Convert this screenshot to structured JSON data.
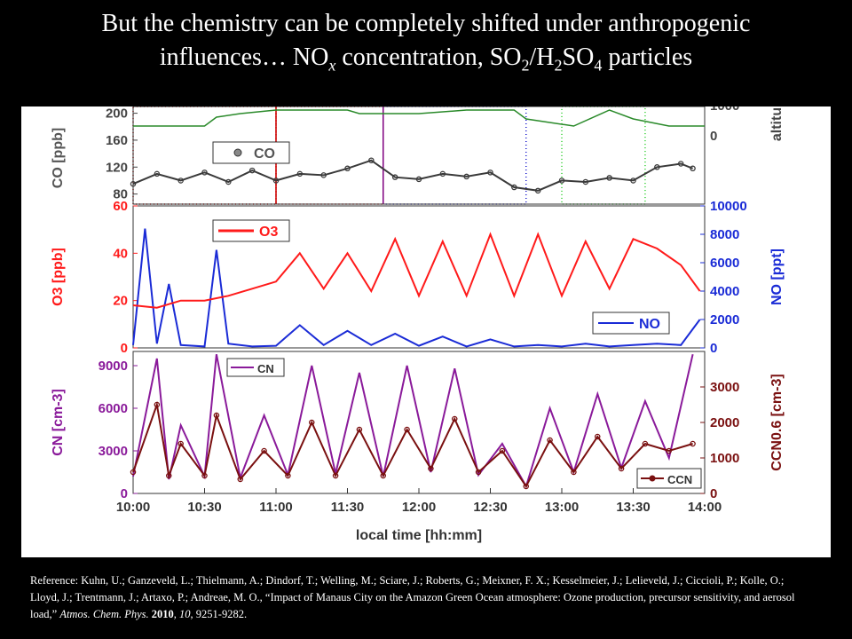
{
  "title": {
    "line1": "But the chemistry can be completely shifted under anthropogenic",
    "line2_a": "influences… NO",
    "line2_x": "x",
    "line2_b": " concentration, SO",
    "line2_2a": "2",
    "line2_c": "/H",
    "line2_2b": "2",
    "line2_d": "SO",
    "line2_4": "4",
    "line2_e": " particles"
  },
  "reference": {
    "text": "Reference: Kuhn, U.; Ganzeveld, L.; Thielmann, A.; Dindorf, T.; Welling, M.; Sciare, J.; Roberts, G.; Meixner, F. X.; Kesselmeier, J.; Lelieveld, J.; Ciccioli, P.; Kolle, O.; Lloyd, J.; Trentmann, J.; Artaxo, P.; Andreae, M. O., “Impact of Manaus City on the Amazon Green Ocean atmosphere: Ozone production, precursor sensitivity, and aerosol load,” ",
    "journal": "Atmos. Chem. Phys.",
    "year": "2010",
    "volume": "10",
    "pages": ", 9251-9282."
  },
  "colors": {
    "co": "#3a3a3a",
    "o3": "#ff1a1a",
    "no": "#1a2bd6",
    "cn": "#8a1a9a",
    "ccn": "#7a1010",
    "altitude": "#2a8a2a",
    "box_red": "#cc0000",
    "box_purple": "#800080",
    "box_blue": "#1a1acc",
    "box_green": "#22cc22"
  },
  "chart_data": [
    {
      "type": "line",
      "panel": "CO / altitude",
      "ylabel": "CO [ppb]",
      "y2label": "altitu",
      "ylim": [
        65,
        210
      ],
      "yticks": [
        "80",
        "120",
        "160",
        "200"
      ],
      "y2ticks": [
        "0",
        "1000"
      ],
      "legend": "CO",
      "series": [
        {
          "name": "CO",
          "x": [
            "10:00",
            "10:10",
            "10:20",
            "10:30",
            "10:40",
            "10:50",
            "11:00",
            "11:10",
            "11:20",
            "11:30",
            "11:40",
            "11:50",
            "12:00",
            "12:10",
            "12:20",
            "12:30",
            "12:40",
            "12:50",
            "13:00",
            "13:10",
            "13:20",
            "13:30",
            "13:40",
            "13:50",
            "13:55"
          ],
          "values": [
            95,
            110,
            100,
            112,
            98,
            115,
            100,
            110,
            108,
            118,
            130,
            105,
            102,
            110,
            106,
            112,
            90,
            85,
            100,
            98,
            104,
            100,
            120,
            125,
            118
          ]
        }
      ]
    },
    {
      "type": "line",
      "panel": "O3 / NO",
      "ylabel": "O3 [ppb]",
      "y2label": "NO [ppt]",
      "ylim": [
        0,
        60
      ],
      "y2lim": [
        0,
        10000
      ],
      "yticks": [
        "0",
        "20",
        "40",
        "60"
      ],
      "y2ticks": [
        "0",
        "2000",
        "4000",
        "6000",
        "8000",
        "10000"
      ],
      "series": [
        {
          "name": "O3",
          "x": [
            "10:00",
            "10:10",
            "10:20",
            "10:30",
            "10:40",
            "10:50",
            "11:00",
            "11:10",
            "11:20",
            "11:30",
            "11:40",
            "11:50",
            "12:00",
            "12:10",
            "12:20",
            "12:30",
            "12:40",
            "12:50",
            "13:00",
            "13:10",
            "13:20",
            "13:30",
            "13:40",
            "13:50",
            "13:58"
          ],
          "values": [
            18,
            17,
            20,
            20,
            22,
            25,
            28,
            40,
            25,
            40,
            24,
            46,
            22,
            45,
            22,
            48,
            22,
            48,
            22,
            45,
            25,
            46,
            42,
            35,
            24
          ]
        },
        {
          "name": "NO",
          "x": [
            "10:00",
            "10:05",
            "10:10",
            "10:15",
            "10:20",
            "10:30",
            "10:35",
            "10:40",
            "10:50",
            "11:00",
            "11:10",
            "11:20",
            "11:30",
            "11:40",
            "11:50",
            "12:00",
            "12:10",
            "12:20",
            "12:30",
            "12:40",
            "12:50",
            "13:00",
            "13:10",
            "13:20",
            "13:30",
            "13:40",
            "13:50",
            "13:58"
          ],
          "values": [
            200,
            8400,
            300,
            4500,
            200,
            100,
            6900,
            300,
            100,
            150,
            1600,
            200,
            1200,
            200,
            1000,
            150,
            800,
            100,
            600,
            100,
            200,
            100,
            300,
            100,
            200,
            300,
            200,
            2000
          ]
        }
      ]
    },
    {
      "type": "line",
      "panel": "CN / CCN",
      "ylabel": "CN [cm-3]",
      "y2label": "CCN0.6 [cm-3]",
      "ylim": [
        0,
        10000
      ],
      "y2lim": [
        0,
        4000
      ],
      "yticks": [
        "0",
        "3000",
        "6000",
        "9000"
      ],
      "y2ticks": [
        "0",
        "1000",
        "2000",
        "3000"
      ],
      "xlabel": "local time [hh:mm]",
      "xticks": [
        "10:00",
        "10:30",
        "11:00",
        "11:30",
        "12:00",
        "12:30",
        "13:00",
        "13:30",
        "14:00"
      ],
      "series": [
        {
          "name": "CN",
          "x": [
            "10:00",
            "10:10",
            "10:15",
            "10:20",
            "10:30",
            "10:35",
            "10:45",
            "10:55",
            "11:05",
            "11:15",
            "11:25",
            "11:35",
            "11:45",
            "11:55",
            "12:05",
            "12:15",
            "12:25",
            "12:35",
            "12:45",
            "12:55",
            "13:05",
            "13:15",
            "13:25",
            "13:35",
            "13:45",
            "13:55"
          ],
          "values": [
            1200,
            9500,
            1000,
            4800,
            1200,
            9800,
            1100,
            5500,
            1300,
            9000,
            1400,
            8500,
            1200,
            9000,
            1500,
            8800,
            1300,
            3500,
            500,
            6000,
            1500,
            7000,
            1800,
            6500,
            2500,
            9800
          ]
        },
        {
          "name": "CCN",
          "x": [
            "10:00",
            "10:10",
            "10:15",
            "10:20",
            "10:30",
            "10:35",
            "10:45",
            "10:55",
            "11:05",
            "11:15",
            "11:25",
            "11:35",
            "11:45",
            "11:55",
            "12:05",
            "12:15",
            "12:25",
            "12:35",
            "12:45",
            "12:55",
            "13:05",
            "13:15",
            "13:25",
            "13:35",
            "13:45",
            "13:55"
          ],
          "values": [
            600,
            2500,
            500,
            1400,
            500,
            2200,
            400,
            1200,
            500,
            2000,
            500,
            1800,
            500,
            1800,
            700,
            2100,
            600,
            1200,
            200,
            1500,
            600,
            1600,
            700,
            1400,
            1200,
            1400
          ]
        }
      ]
    }
  ]
}
